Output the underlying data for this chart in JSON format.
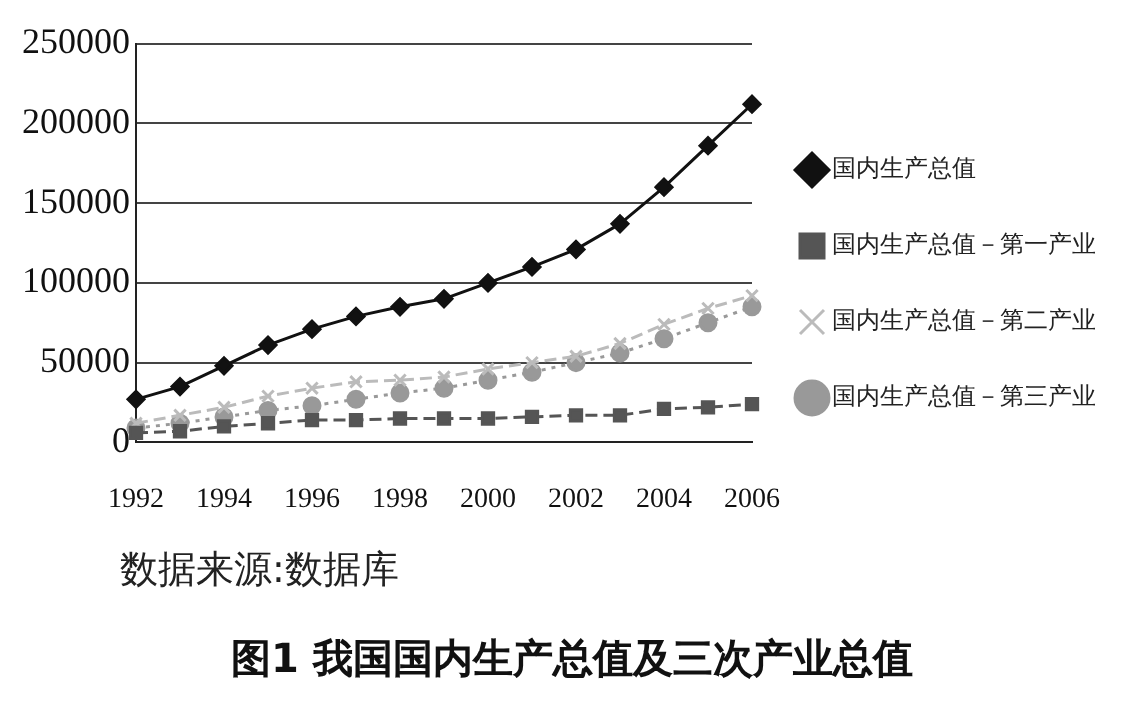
{
  "chart_data": {
    "type": "line",
    "title": "图1 我国国内生产总值及三次产业总值",
    "categories": [
      "1992",
      null,
      "1994",
      null,
      "1996",
      null,
      "1998",
      null,
      "2000",
      null,
      "2002",
      null,
      "2004",
      null,
      "2006"
    ],
    "series": [
      {
        "name": "国内生产总值",
        "color": "#111111",
        "marker": "diamond",
        "line_style": "solid",
        "values": [
          27000,
          35000,
          48000,
          61000,
          71000,
          79000,
          85000,
          90000,
          100000,
          110000,
          121000,
          137000,
          160000,
          186000,
          212000
        ]
      },
      {
        "name": "国内生产总值－第一产业",
        "color": "#555555",
        "marker": "square",
        "line_style": "dashed",
        "values": [
          6000,
          7000,
          10000,
          12000,
          14000,
          14000,
          15000,
          15000,
          15000,
          16000,
          17000,
          17000,
          21000,
          22000,
          24000
        ]
      },
      {
        "name": "国内生产总值－第二产业",
        "color": "#bbbbbb",
        "marker": "cross",
        "line_style": "dashed",
        "values": [
          12000,
          17000,
          22000,
          29000,
          34000,
          38000,
          39000,
          41000,
          46000,
          50000,
          54000,
          62000,
          74000,
          84000,
          92000
        ]
      },
      {
        "name": "国内生产总值－第三产业",
        "color": "#999999",
        "marker": "circle",
        "line_style": "dotted",
        "values": [
          9000,
          12000,
          16000,
          20000,
          23000,
          27000,
          31000,
          34000,
          39000,
          44000,
          50000,
          56000,
          65000,
          75000,
          85000
        ]
      }
    ],
    "ylim": [
      0,
      250000
    ],
    "yticks": [
      0,
      50000,
      100000,
      150000,
      200000,
      250000
    ],
    "grid": "y",
    "legend": "right",
    "annotations": [
      "数据来源:数据库"
    ]
  }
}
